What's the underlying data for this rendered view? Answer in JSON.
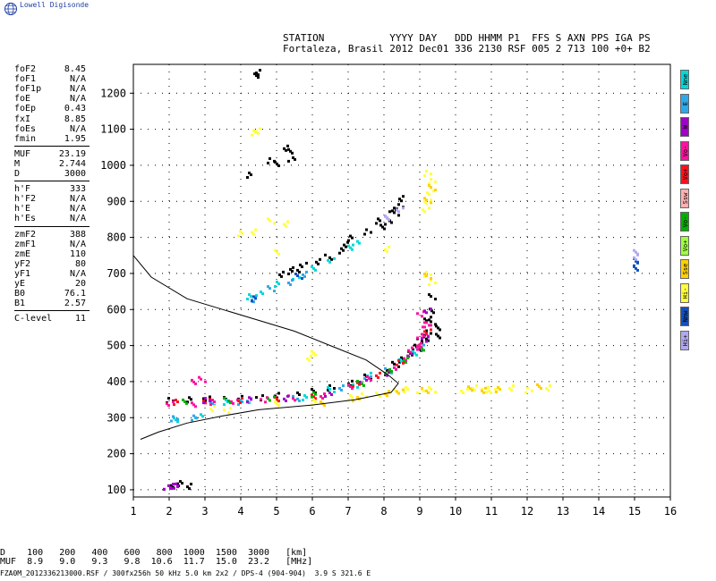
{
  "header": {
    "brand": "Lowell Digisonde",
    "line1": "STATION           YYYY DAY   DDD HHMM P1  FFS S AXN PPS IGA PS",
    "line2": "Fortaleza, Brasil 2012 Dec01 336 2130 RSF 005 2 713 100 +0+ B2"
  },
  "params": [
    {
      "key": "foF2",
      "value": "8.45"
    },
    {
      "key": "foF1",
      "value": "N/A"
    },
    {
      "key": "foF1p",
      "value": "N/A"
    },
    {
      "key": "foE",
      "value": "N/A"
    },
    {
      "key": "foEp",
      "value": "0.43"
    },
    {
      "key": "fxI",
      "value": "8.85"
    },
    {
      "key": "foEs",
      "value": "N/A"
    },
    {
      "key": "fmin",
      "value": "1.95"
    },
    {
      "key": "MUF",
      "value": "23.19"
    },
    {
      "key": "M",
      "value": "2.744"
    },
    {
      "key": "D",
      "value": "3000"
    },
    {
      "key": "h'F",
      "value": "333"
    },
    {
      "key": "h'F2",
      "value": "N/A"
    },
    {
      "key": "h'E",
      "value": "N/A"
    },
    {
      "key": "h'Es",
      "value": "N/A"
    },
    {
      "key": "zmF2",
      "value": "388"
    },
    {
      "key": "zmF1",
      "value": "N/A"
    },
    {
      "key": "zmE",
      "value": "110"
    },
    {
      "key": "yF2",
      "value": "80"
    },
    {
      "key": "yF1",
      "value": "N/A"
    },
    {
      "key": "yE",
      "value": "20"
    },
    {
      "key": "B0",
      "value": "76.1"
    },
    {
      "key": "B1",
      "value": "2.57"
    },
    {
      "key": "C-level",
      "value": "11"
    }
  ],
  "legend": [
    {
      "label": "Nne",
      "color": "#00d8d8"
    },
    {
      "label": "E",
      "color": "#30a8e8"
    },
    {
      "label": "W",
      "color": "#a000c8"
    },
    {
      "label": "Vo-",
      "color": "#ff10a0"
    },
    {
      "label": "Vo+",
      "color": "#ff1020"
    },
    {
      "label": "Ssw",
      "color": "#ffb0b0"
    },
    {
      "label": "Vo-",
      "color": "#00b000"
    },
    {
      "label": "Vo+",
      "color": "#a0ff40"
    },
    {
      "label": "Sse",
      "color": "#ffd000"
    },
    {
      "label": "Hi-",
      "color": "#ffff40"
    },
    {
      "label": "Nnw",
      "color": "#1050c0"
    },
    {
      "label": "Hi+",
      "color": "#b0a8f0"
    }
  ],
  "chart_data": {
    "type": "scatter",
    "xlim": [
      1,
      16
    ],
    "ylim": [
      80,
      1280
    ],
    "x_ticks": [
      1,
      2,
      3,
      4,
      5,
      6,
      7,
      8,
      9,
      10,
      11,
      12,
      13,
      14,
      15,
      16
    ],
    "y_ticks": [
      100,
      200,
      300,
      400,
      500,
      600,
      700,
      800,
      900,
      1000,
      1100,
      1200
    ],
    "grid": true,
    "profile": {
      "color": "#000000",
      "points": [
        [
          1.0,
          750
        ],
        [
          1.5,
          690
        ],
        [
          2.5,
          630
        ],
        [
          3.5,
          600
        ],
        [
          4.5,
          570
        ],
        [
          5.5,
          540
        ],
        [
          6.5,
          500
        ],
        [
          7.5,
          460
        ],
        [
          8.1,
          420
        ],
        [
          8.4,
          395
        ],
        [
          8.2,
          370
        ],
        [
          7.2,
          350
        ],
        [
          6.0,
          335
        ],
        [
          4.5,
          322
        ],
        [
          3.5,
          305
        ],
        [
          2.5,
          285
        ],
        [
          1.7,
          260
        ],
        [
          1.2,
          240
        ]
      ]
    },
    "series": [
      {
        "color": "#000000",
        "points": [
          [
            1.9,
            110
          ],
          [
            2.1,
            118
          ],
          [
            2.3,
            122
          ],
          [
            2.5,
            112
          ],
          [
            4.4,
            1260
          ],
          [
            4.35,
            1250
          ],
          [
            5.2,
            1050
          ],
          [
            5.3,
            1040
          ],
          [
            5.4,
            1020
          ],
          [
            4.8,
            1015
          ],
          [
            5.0,
            1005
          ],
          [
            4.2,
            975
          ],
          [
            6.9,
            785
          ],
          [
            7.0,
            800
          ],
          [
            7.5,
            820
          ],
          [
            7.8,
            850
          ],
          [
            8.0,
            860
          ],
          [
            8.2,
            880
          ],
          [
            8.4,
            890
          ],
          [
            8.5,
            910
          ],
          [
            7.9,
            830
          ],
          [
            8.1,
            845
          ],
          [
            8.3,
            870
          ],
          [
            5.1,
            700
          ],
          [
            5.3,
            710
          ],
          [
            5.5,
            715
          ],
          [
            5.7,
            725
          ],
          [
            6.1,
            735
          ],
          [
            6.4,
            750
          ],
          [
            6.8,
            765
          ],
          [
            2.0,
            350
          ],
          [
            2.5,
            352
          ],
          [
            3.0,
            354
          ],
          [
            3.5,
            355
          ],
          [
            4.0,
            358
          ],
          [
            4.5,
            360
          ],
          [
            5.0,
            364
          ],
          [
            5.5,
            370
          ],
          [
            6.0,
            375
          ],
          [
            6.5,
            385
          ],
          [
            7.0,
            400
          ],
          [
            7.5,
            415
          ],
          [
            8.0,
            430
          ],
          [
            8.3,
            450
          ],
          [
            8.5,
            465
          ],
          [
            8.7,
            480
          ],
          [
            8.9,
            495
          ],
          [
            9.1,
            515
          ],
          [
            9.2,
            540
          ],
          [
            9.3,
            570
          ],
          [
            9.35,
            600
          ],
          [
            9.3,
            640
          ],
          [
            9.2,
            580
          ],
          [
            9.0,
            520
          ],
          [
            8.8,
            500
          ],
          [
            9.5,
            550
          ],
          [
            9.5,
            530
          ]
        ]
      },
      {
        "color": "#00d8d8",
        "points": [
          [
            2.2,
            300
          ],
          [
            2.8,
            305
          ],
          [
            3.5,
            345
          ],
          [
            4.2,
            350
          ],
          [
            5.0,
            355
          ],
          [
            5.8,
            360
          ],
          [
            6.5,
            380
          ],
          [
            7.2,
            395
          ],
          [
            7.6,
            420
          ],
          [
            8.2,
            440
          ],
          [
            8.5,
            460
          ],
          [
            8.8,
            480
          ],
          [
            4.2,
            640
          ],
          [
            4.5,
            650
          ],
          [
            5.0,
            675
          ],
          [
            5.5,
            690
          ],
          [
            6.0,
            720
          ],
          [
            6.5,
            740
          ],
          [
            7.0,
            775
          ],
          [
            7.2,
            790
          ]
        ]
      },
      {
        "color": "#30a8e8",
        "points": [
          [
            2.1,
            302
          ],
          [
            2.6,
            304
          ],
          [
            3.2,
            340
          ],
          [
            4.0,
            345
          ],
          [
            5.5,
            358
          ],
          [
            6.8,
            385
          ],
          [
            7.5,
            410
          ],
          [
            8.1,
            435
          ],
          [
            8.6,
            470
          ],
          [
            9.0,
            500
          ],
          [
            4.3,
            630
          ],
          [
            4.8,
            660
          ],
          [
            5.3,
            680
          ],
          [
            5.8,
            700
          ]
        ]
      },
      {
        "color": "#ff10a0",
        "points": [
          [
            2.0,
            340
          ],
          [
            2.6,
            342
          ],
          [
            3.2,
            345
          ],
          [
            3.8,
            348
          ],
          [
            4.6,
            352
          ],
          [
            5.4,
            357
          ],
          [
            6.2,
            365
          ],
          [
            7.0,
            390
          ],
          [
            7.6,
            410
          ],
          [
            8.2,
            440
          ],
          [
            8.6,
            470
          ],
          [
            8.9,
            500
          ],
          [
            9.1,
            530
          ],
          [
            9.2,
            560
          ],
          [
            9.0,
            590
          ],
          [
            2.6,
            405
          ],
          [
            2.9,
            408
          ]
        ]
      },
      {
        "color": "#ff1020",
        "points": [
          [
            2.2,
            345
          ],
          [
            3.0,
            347
          ],
          [
            4.0,
            350
          ],
          [
            5.0,
            355
          ],
          [
            6.0,
            362
          ],
          [
            7.2,
            398
          ],
          [
            7.8,
            420
          ],
          [
            8.4,
            455
          ],
          [
            8.9,
            505
          ],
          [
            9.2,
            545
          ]
        ]
      },
      {
        "color": "#a000c8",
        "points": [
          [
            1.9,
            110
          ],
          [
            2.1,
            112
          ],
          [
            2.2,
            115
          ],
          [
            3.0,
            350
          ],
          [
            4.2,
            352
          ],
          [
            5.2,
            358
          ],
          [
            6.4,
            370
          ],
          [
            7.4,
            405
          ],
          [
            8.0,
            428
          ],
          [
            8.7,
            478
          ],
          [
            9.1,
            520
          ],
          [
            9.2,
            600
          ]
        ]
      },
      {
        "color": "#00b000",
        "points": [
          [
            2.4,
            348
          ],
          [
            3.6,
            350
          ],
          [
            4.8,
            354
          ],
          [
            6.0,
            366
          ],
          [
            7.3,
            400
          ],
          [
            8.1,
            432
          ],
          [
            8.6,
            462
          ],
          [
            9.0,
            498
          ]
        ]
      },
      {
        "color": "#ffff40",
        "points": [
          [
            7.8,
            370
          ],
          [
            8.2,
            375
          ],
          [
            8.6,
            380
          ],
          [
            9.0,
            375
          ],
          [
            9.3,
            380
          ],
          [
            10.2,
            375
          ],
          [
            10.5,
            385
          ],
          [
            10.8,
            380
          ],
          [
            11.0,
            375
          ],
          [
            11.5,
            385
          ],
          [
            12.0,
            378
          ],
          [
            12.5,
            385
          ],
          [
            9.2,
            900
          ],
          [
            9.25,
            930
          ],
          [
            9.3,
            960
          ],
          [
            9.2,
            980
          ],
          [
            9.15,
            880
          ],
          [
            4.0,
            815
          ],
          [
            4.3,
            820
          ],
          [
            5.0,
            760
          ],
          [
            4.3,
            1095
          ],
          [
            4.4,
            1100
          ],
          [
            5.9,
            470
          ],
          [
            6.0,
            480
          ],
          [
            4.8,
            850
          ],
          [
            5.2,
            840
          ],
          [
            3.2,
            330
          ],
          [
            3.6,
            325
          ],
          [
            5.0,
            340
          ],
          [
            6.0,
            345
          ],
          [
            7.0,
            360
          ],
          [
            7.4,
            365
          ],
          [
            9.2,
            700
          ],
          [
            9.3,
            680
          ],
          [
            8.0,
            770
          ]
        ]
      },
      {
        "color": "#ffd000",
        "points": [
          [
            8.0,
            372
          ],
          [
            8.4,
            376
          ],
          [
            9.1,
            378
          ],
          [
            10.4,
            382
          ],
          [
            10.7,
            378
          ],
          [
            11.2,
            380
          ],
          [
            12.3,
            390
          ],
          [
            9.2,
            905
          ],
          [
            9.3,
            940
          ],
          [
            9.2,
            695
          ],
          [
            6.2,
            340
          ],
          [
            7.2,
            355
          ]
        ]
      },
      {
        "color": "#1050c0",
        "points": [
          [
            15.0,
            730
          ],
          [
            15.0,
            740
          ],
          [
            15.0,
            720
          ],
          [
            4.3,
            632
          ],
          [
            5.6,
            695
          ]
        ]
      },
      {
        "color": "#b0a8f0",
        "points": [
          [
            15.0,
            760
          ],
          [
            15.0,
            750
          ],
          [
            8.0,
            860
          ],
          [
            8.4,
            880
          ]
        ]
      },
      {
        "color": "#ff10a0",
        "points": [
          [
            8.9,
            505
          ],
          [
            9.0,
            530
          ],
          [
            9.15,
            560
          ],
          [
            8.7,
            490
          ]
        ]
      }
    ]
  },
  "bottom": {
    "d_row": "D    100   200   400   600   800  1000  1500  3000   [km]",
    "muf_row": "MUF  8.9   9.0   9.3   9.8  10.6  11.7  15.0  23.2   [MHz]"
  },
  "footer": "FZA0M_2012336213000.RSF / 300fx256h 50 kHz 5.0 km 2x2 / DPS-4 (904-904)  3.9 S 321.6 E"
}
